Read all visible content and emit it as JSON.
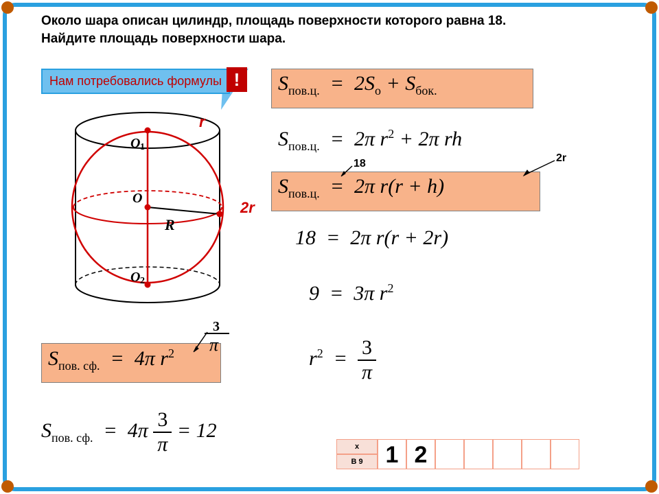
{
  "colors": {
    "frame": "#2aa0e0",
    "corner": "#c05a00",
    "callout_bg": "#6fc0ef",
    "callout_border": "#2aa0e0",
    "callout_text": "#c00000",
    "bang_bg": "#c00000",
    "formula_box_bg": "#f8b38a",
    "formula_box_border": "#808080",
    "answer_border": "#f4a088",
    "answer_label_bg": "#f8e0d8",
    "answer_cell_bg": "#ffffff",
    "diagram_red": "#d00000"
  },
  "problem": {
    "line1": "Около шара описан цилиндр, площадь поверхности которого равна 18.",
    "line2": "Найдите площадь поверхности шара."
  },
  "callout_text": "Нам потребовались формулы",
  "bang": "!",
  "diagram": {
    "r_label": "r",
    "two_r_label": "2r",
    "O1": "O₁",
    "O": "O",
    "O2": "O₂",
    "R": "R"
  },
  "formulas": {
    "f1_html": "<i>S</i><span class='sub'>пов.ц.</span> &nbsp;=&nbsp; 2<i>S</i><span class='sub'>о</span> + <i>S</i><span class='sub'>бок.</span>",
    "f2_html": "<i>S</i><span class='sub'>пов.ц.</span> &nbsp;=&nbsp; 2<i>π r</i><span class='sup'>2</span> + 2<i>π rh</i>",
    "f3_html": "<i>S</i><span class='sub'>пов.ц.</span> &nbsp;=&nbsp; 2<i>π r</i>(<i>r</i> + h)",
    "f4_html": "18 &nbsp;=&nbsp; 2<i>π r</i>(<i>r</i> + 2<i>r</i>)",
    "f5_html": "9 &nbsp;=&nbsp; 3<i>π r</i><span class='sup'>2</span>",
    "f6_html": "<i>r</i><span class='sup'>2</span> &nbsp;=&nbsp; <span class='frac'><span class='num'>3</span><span class='den'><i>π</i></span></span>",
    "f7_html": "<i>S</i><span class='sub'>пов. сф.</span> &nbsp;=&nbsp; 4<i>π r</i><span class='sup'>2</span>",
    "f8_html": "<i>S</i><span class='sub'>пов. сф.</span> &nbsp;=&nbsp; 4<i>π</i> <span class='frac'><span class='num'>3</span><span class='den'><i>π</i></span></span> = 12",
    "annot_18": "18",
    "annot_2r": "2r",
    "annot_3pi_3": "3",
    "annot_3pi_pi": "π"
  },
  "answer": {
    "label": "В 9",
    "x": "х",
    "cells": [
      "1",
      "2",
      "",
      "",
      "",
      "",
      ""
    ]
  }
}
